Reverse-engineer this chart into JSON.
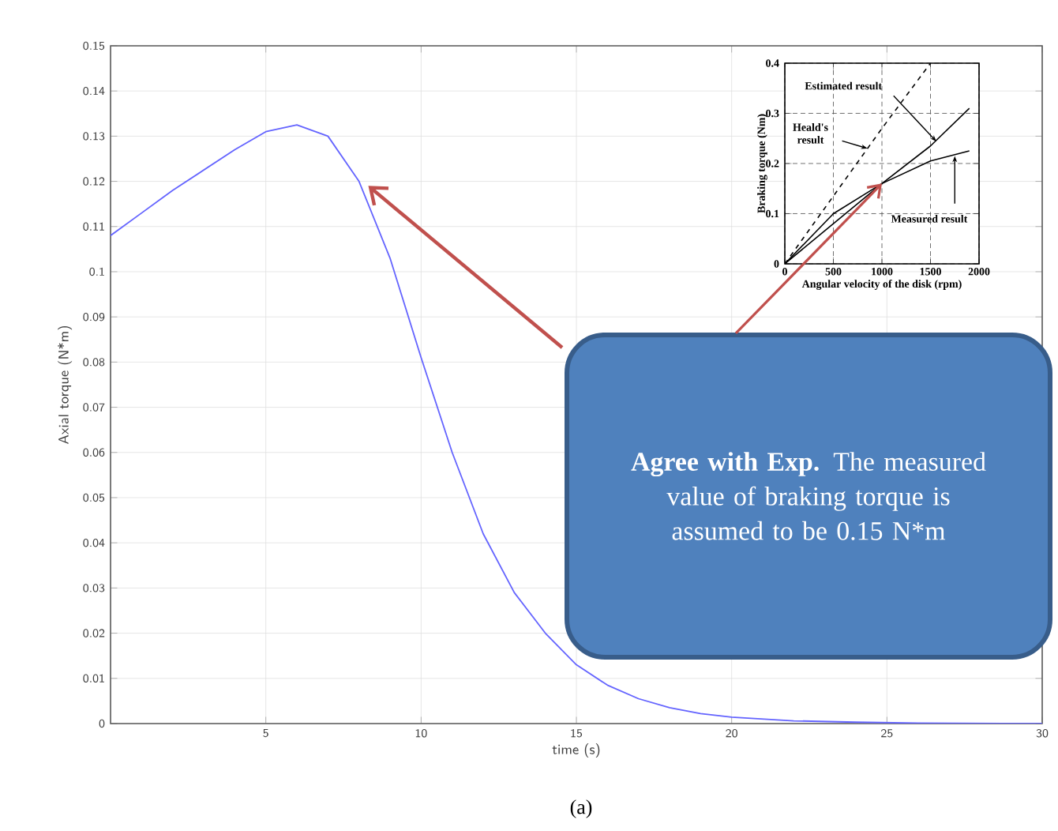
{
  "chart_data": [
    {
      "type": "line",
      "xlabel": "time (s)",
      "ylabel": "Axial torque (N*m)",
      "xlim": [
        0,
        30
      ],
      "ylim": [
        0,
        0.15
      ],
      "xticks": [
        5,
        10,
        15,
        20,
        25,
        30
      ],
      "yticks": [
        0,
        0.01,
        0.02,
        0.03,
        0.04,
        0.05,
        0.06,
        0.07,
        0.08,
        0.09,
        0.1,
        0.11,
        0.12,
        0.13,
        0.14,
        0.15
      ],
      "grid": true,
      "series": [
        {
          "color": "#6464ff",
          "x": [
            0,
            1,
            2,
            3,
            4,
            5,
            6,
            7,
            8,
            9,
            10,
            11,
            12,
            13,
            14,
            15,
            16,
            17,
            18,
            19,
            20,
            22,
            24,
            26,
            30
          ],
          "values": [
            0.108,
            0.113,
            0.118,
            0.1225,
            0.127,
            0.131,
            0.1325,
            0.13,
            0.12,
            0.103,
            0.081,
            0.06,
            0.042,
            0.029,
            0.02,
            0.013,
            0.0085,
            0.0055,
            0.0035,
            0.0022,
            0.0014,
            0.0006,
            0.0003,
            0.0001,
            0
          ]
        }
      ],
      "annotations": [
        "**Agree with Exp.** The measured value of braking torque is assumed to be 0.15 N*m",
        "(a)"
      ]
    },
    {
      "type": "line",
      "xlabel": "Angular velocity of the disk (rpm)",
      "ylabel": "Braking torque (Nm)",
      "xlim": [
        0,
        2000
      ],
      "ylim": [
        0,
        0.4
      ],
      "xticks": [
        0,
        500,
        1000,
        1500,
        2000
      ],
      "yticks": [
        0,
        0.1,
        0.2,
        0.3,
        0.4
      ],
      "grid": true,
      "series": [
        {
          "color": "#000000",
          "line_style": "dashed",
          "x": [
            0,
            1000,
            1500
          ],
          "values": [
            0,
            0.27,
            0.4
          ]
        },
        {
          "color": "#000000",
          "line_style": "solid",
          "x": [
            0,
            500,
            1000,
            1500,
            1900
          ],
          "values": [
            0,
            0.08,
            0.16,
            0.235,
            0.31
          ]
        },
        {
          "color": "#000000",
          "line_style": "solid",
          "x": [
            0,
            500,
            1000,
            1500,
            1900
          ],
          "values": [
            0,
            0.1,
            0.16,
            0.205,
            0.225
          ]
        }
      ],
      "annotations": [
        {
          "text": "Estimated result",
          "x": 1560,
          "y": 0.244
        },
        {
          "text": "Heald's result",
          "x": 850,
          "y": 0.23
        },
        {
          "text": "Measured result",
          "x": 1750,
          "y": 0.215
        }
      ]
    }
  ]
}
